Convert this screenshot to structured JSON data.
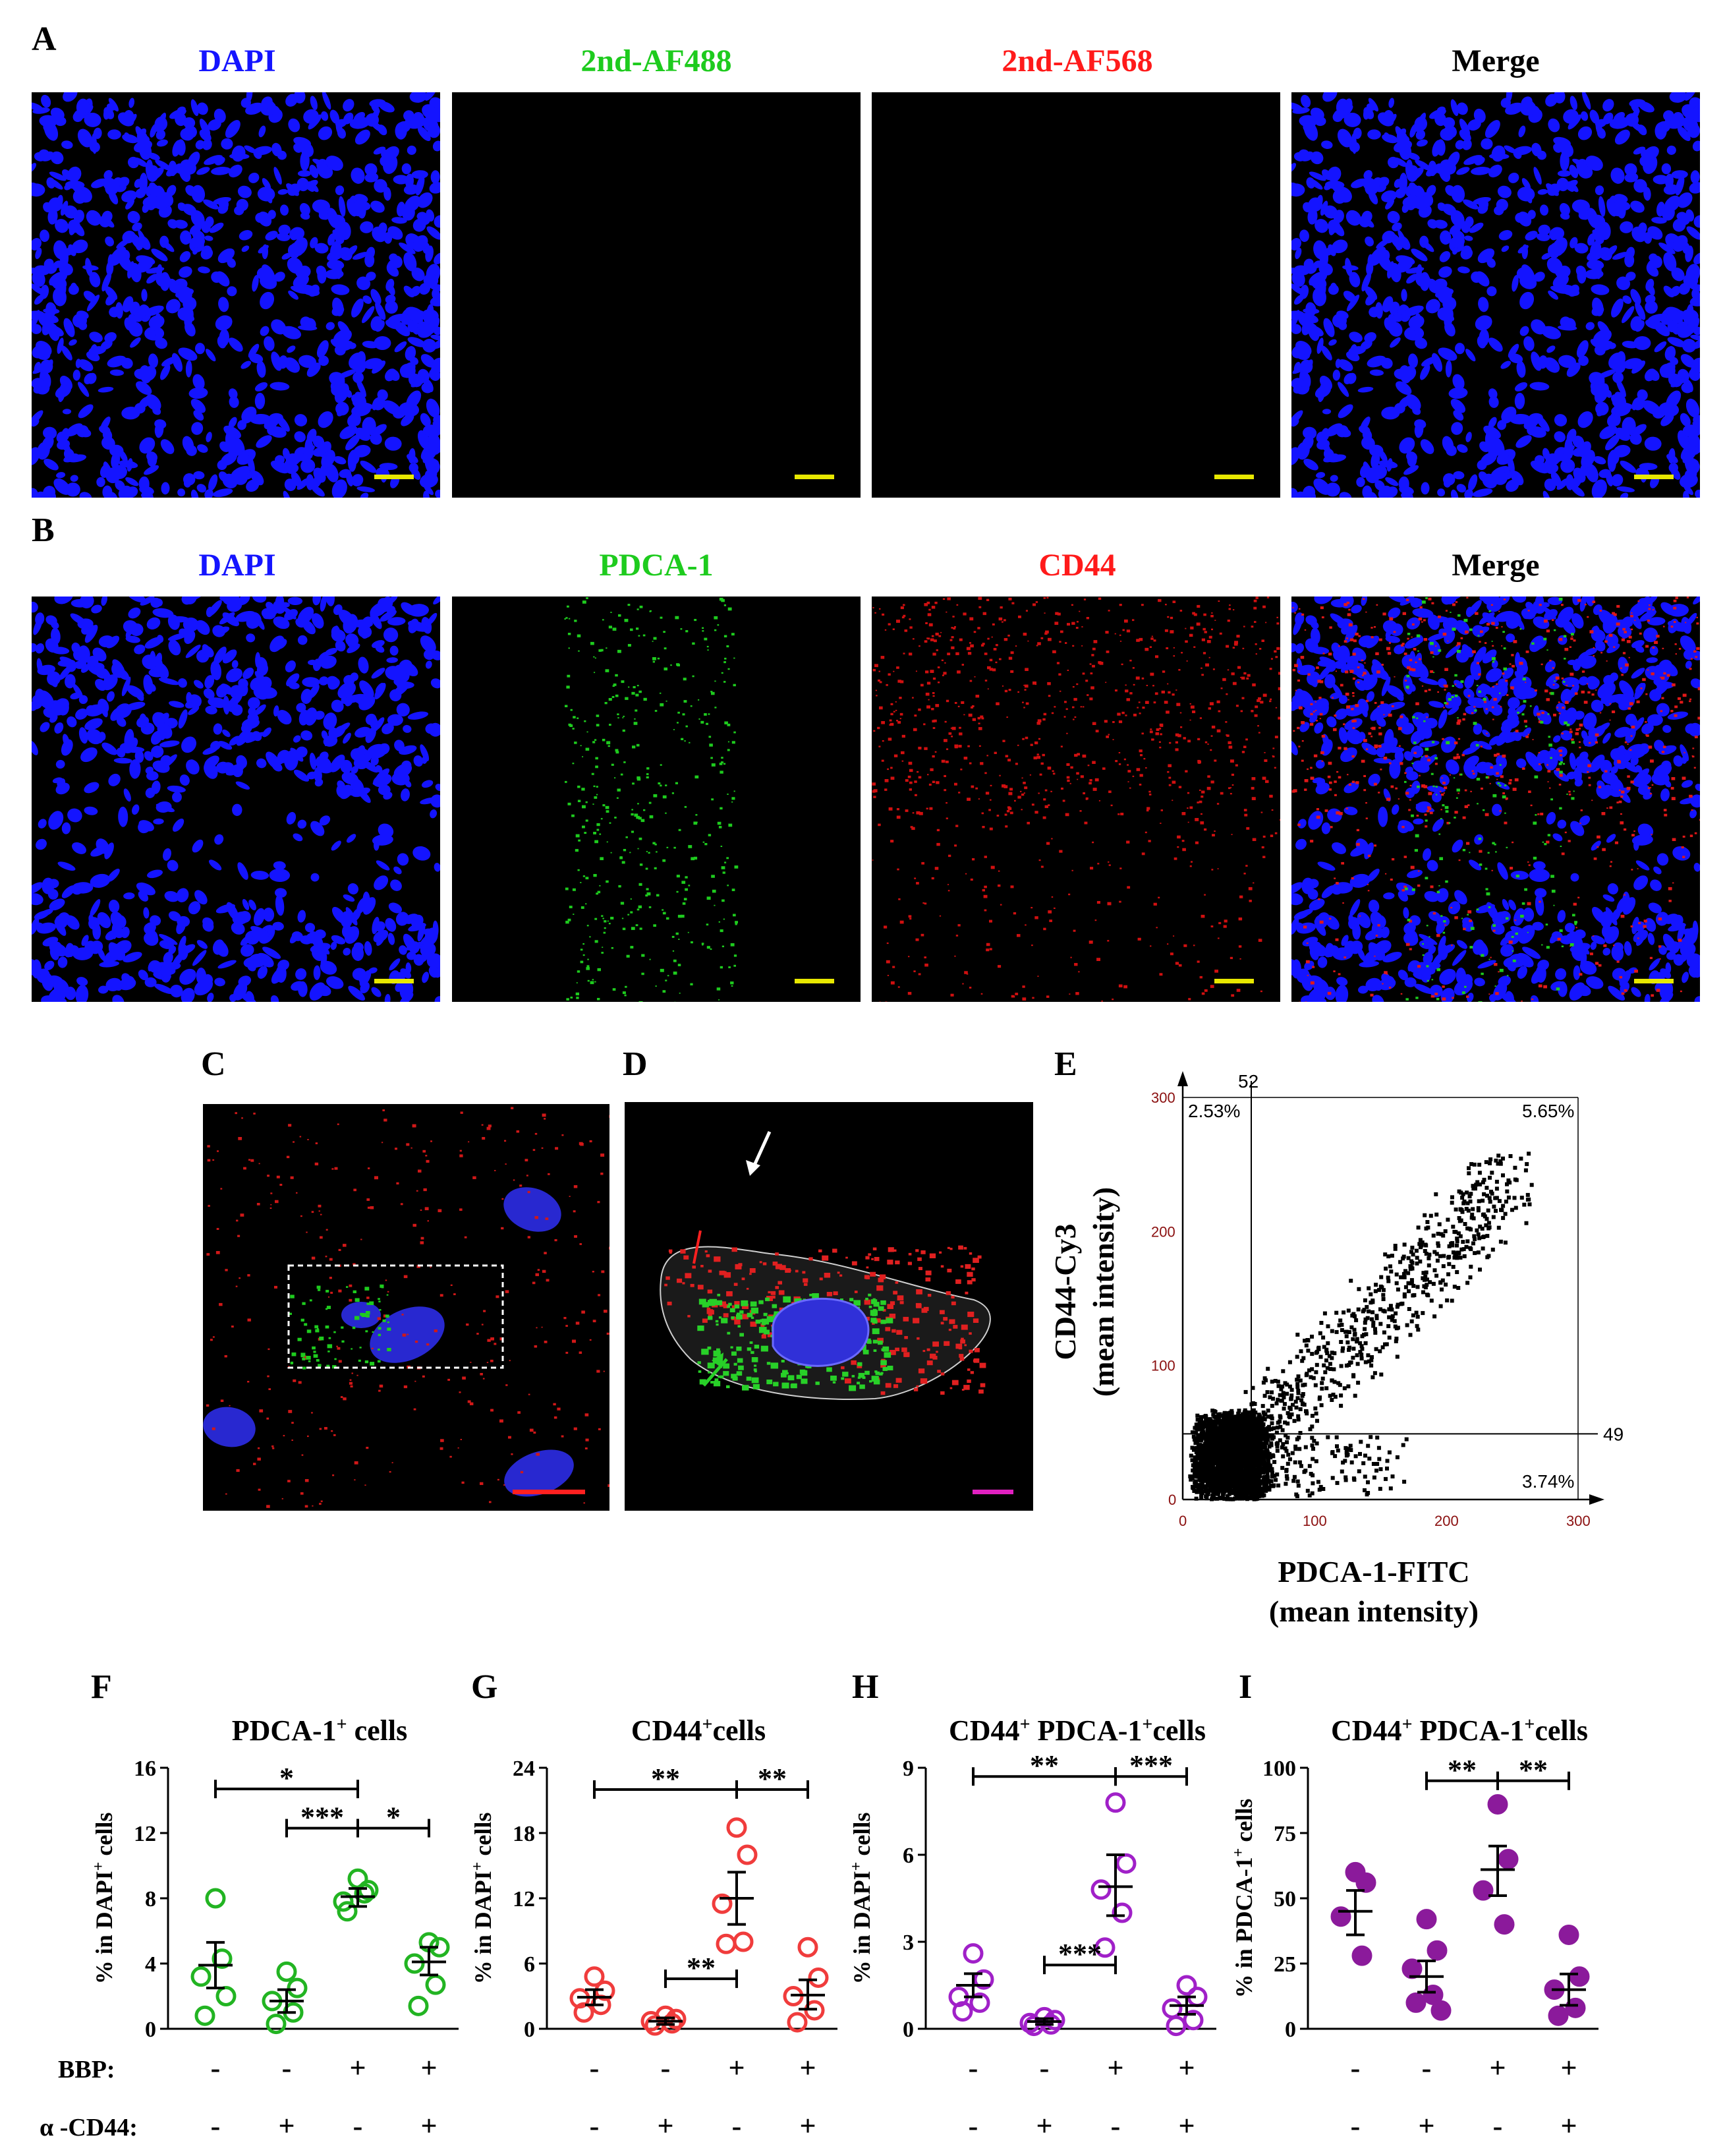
{
  "panel_letters": [
    "A",
    "B",
    "C",
    "D",
    "E",
    "F",
    "G",
    "H",
    "I"
  ],
  "colors": {
    "dapi": "#1414ff",
    "green": "#1ecb1e",
    "red": "#ff1a1a",
    "scalebar_yellow": "#e8e800",
    "scalebar_red": "#ff2020",
    "scalebar_magenta": "#e020c0",
    "plot_green": "#22b422",
    "plot_red": "#f03c3c",
    "plot_purple": "#a020c8",
    "plot_darkpurple": "#8b1a9b",
    "flow_axis": "#8b1010"
  },
  "rowA": {
    "labels": [
      "DAPI",
      "2nd-AF488",
      "2nd-AF568",
      "Merge"
    ],
    "label_colors": [
      "#1414ff",
      "#1ecb1e",
      "#ff1a1a",
      "#000000"
    ]
  },
  "rowB": {
    "labels": [
      "DAPI",
      "PDCA-1",
      "CD44",
      "Merge"
    ],
    "label_colors": [
      "#1414ff",
      "#1ecb1e",
      "#ff1a1a",
      "#000000"
    ]
  },
  "flow": {
    "gate_x": "52",
    "gate_y": "49",
    "q_ul": "2.53%",
    "q_ur": "5.65%",
    "q_lr": "3.74%",
    "ylabel1": "CD44-Cy3",
    "ylabel2": "(mean intensity)",
    "xlabel1": "PDCA-1-FITC",
    "xlabel2": "(mean intensity)",
    "xticks": [
      "0",
      "100",
      "200",
      "300"
    ],
    "yticks": [
      "0",
      "100",
      "200",
      "300"
    ]
  },
  "chart_data": [
    {
      "type": "scatter",
      "panel": "E",
      "xlabel": "PDCA-1-FITC (mean intensity)",
      "ylabel": "CD44-Cy3 (mean intensity)",
      "xlim": [
        0,
        300
      ],
      "ylim": [
        0,
        300
      ],
      "gates": {
        "x": 52,
        "y": 49
      },
      "quadrants": {
        "upper_left": "2.53%",
        "upper_right": "5.65%",
        "lower_right": "3.74%"
      }
    },
    {
      "type": "scatter",
      "panel": "F",
      "title": "PDCA-1+ cells",
      "ylabel": "% in DAPI+ cells",
      "ylim": [
        0,
        16
      ],
      "yticks": [
        0,
        4,
        8,
        12,
        16
      ],
      "groups": [
        {
          "points": [
            8.0,
            2.0,
            3.2,
            4.3,
            0.8
          ],
          "mean": 3.9,
          "sem_hi": 5.3,
          "sem_lo": 2.5
        },
        {
          "points": [
            3.5,
            2.5,
            1.7,
            1.0,
            0.3
          ],
          "mean": 1.7,
          "sem_hi": 2.4,
          "sem_lo": 1.0
        },
        {
          "points": [
            9.2,
            8.5,
            7.8,
            8.3,
            7.2
          ],
          "mean": 8.1,
          "sem_hi": 8.6,
          "sem_lo": 7.5
        },
        {
          "points": [
            5.3,
            5.0,
            4.0,
            2.7,
            1.4
          ],
          "mean": 4.1,
          "sem_hi": 5.0,
          "sem_lo": 3.3
        }
      ],
      "significance": [
        {
          "from": 0,
          "to": 2,
          "label": "*",
          "y": 14.7
        },
        {
          "from": 1,
          "to": 2,
          "label": "***",
          "y": 12.3
        },
        {
          "from": 2,
          "to": 3,
          "label": "*",
          "y": 12.3
        }
      ]
    },
    {
      "type": "scatter",
      "panel": "G",
      "title": "CD44+cells",
      "ylabel": "% in DAPI+ cells",
      "ylim": [
        0,
        24
      ],
      "yticks": [
        0,
        6,
        12,
        18,
        24
      ],
      "groups": [
        {
          "points": [
            4.8,
            3.5,
            2.8,
            2.2,
            1.5
          ],
          "mean": 2.9,
          "sem_hi": 3.6,
          "sem_lo": 2.2
        },
        {
          "points": [
            1.2,
            0.9,
            0.7,
            0.5,
            0.3
          ],
          "mean": 0.7,
          "sem_hi": 1.0,
          "sem_lo": 0.4
        },
        {
          "points": [
            18.5,
            16.0,
            11.5,
            8.0,
            7.8
          ],
          "mean": 12.0,
          "sem_hi": 14.4,
          "sem_lo": 9.6
        },
        {
          "points": [
            7.5,
            4.7,
            3.0,
            1.7,
            0.6
          ],
          "mean": 3.1,
          "sem_hi": 4.5,
          "sem_lo": 1.8
        }
      ],
      "significance": [
        {
          "from": 0,
          "to": 2,
          "label": "**",
          "y": 22.0
        },
        {
          "from": 2,
          "to": 3,
          "label": "**",
          "y": 22.0
        },
        {
          "from": 1,
          "to": 2,
          "label": "**",
          "y": 4.6
        }
      ]
    },
    {
      "type": "scatter",
      "panel": "H",
      "title": "CD44+ PDCA-1+cells",
      "ylabel": "% in DAPI+ cells",
      "ylim": [
        0,
        9
      ],
      "yticks": [
        0,
        3,
        6,
        9
      ],
      "groups": [
        {
          "points": [
            2.6,
            1.7,
            1.1,
            0.9,
            0.6
          ],
          "mean": 1.5,
          "sem_hi": 1.9,
          "sem_lo": 1.1
        },
        {
          "points": [
            0.4,
            0.3,
            0.2,
            0.15,
            0.1
          ],
          "mean": 0.25,
          "sem_hi": 0.35,
          "sem_lo": 0.15
        },
        {
          "points": [
            7.8,
            5.7,
            4.8,
            4.0,
            2.8
          ],
          "mean": 4.9,
          "sem_hi": 6.0,
          "sem_lo": 3.9
        },
        {
          "points": [
            1.5,
            1.1,
            0.7,
            0.3,
            0.1
          ],
          "mean": 0.8,
          "sem_hi": 1.1,
          "sem_lo": 0.5
        }
      ],
      "significance": [
        {
          "from": 0,
          "to": 2,
          "label": "**",
          "y": 8.7
        },
        {
          "from": 2,
          "to": 3,
          "label": "***",
          "y": 8.7
        },
        {
          "from": 1,
          "to": 2,
          "label": "***",
          "y": 2.2
        }
      ]
    },
    {
      "type": "scatter",
      "panel": "I",
      "title": "CD44+ PDCA-1+cells",
      "ylabel": "% in PDCA-1+ cells",
      "ylim": [
        0,
        100
      ],
      "yticks": [
        0,
        25,
        50,
        75,
        100
      ],
      "groups": [
        {
          "points": [
            60,
            56,
            43,
            28
          ],
          "mean": 45,
          "sem_hi": 53,
          "sem_lo": 36
        },
        {
          "points": [
            42,
            30,
            23,
            13,
            10,
            7
          ],
          "mean": 20,
          "sem_hi": 26,
          "sem_lo": 14
        },
        {
          "points": [
            86,
            65,
            53,
            40
          ],
          "mean": 61,
          "sem_hi": 70,
          "sem_lo": 51
        },
        {
          "points": [
            36,
            20,
            15,
            8,
            5
          ],
          "mean": 15,
          "sem_hi": 21,
          "sem_lo": 9
        }
      ],
      "significance": [
        {
          "from": 1,
          "to": 2,
          "label": "**",
          "y": 95
        },
        {
          "from": 2,
          "to": 3,
          "label": "**",
          "y": 95
        }
      ]
    }
  ],
  "plots": {
    "F": {
      "title_main": "PDCA-1",
      "title_sup": "+",
      "title_rest": " cells",
      "ylabel_main": "% in DAPI",
      "ylabel_sup": "+",
      "ylabel_rest": " cells"
    },
    "G": {
      "title_main": "CD44",
      "title_sup": "+",
      "title_rest": "cells",
      "ylabel_main": "% in DAPI",
      "ylabel_sup": "+",
      "ylabel_rest": " cells"
    },
    "H": {
      "title_main": "CD44",
      "title_sup": "+",
      "title_mid": " PDCA-1",
      "title_sup2": "+",
      "title_rest": "cells",
      "ylabel_main": "% in DAPI",
      "ylabel_sup": "+",
      "ylabel_rest": " cells"
    },
    "I": {
      "title_main": "CD44",
      "title_sup": "+",
      "title_mid": " PDCA-1",
      "title_sup2": "+",
      "title_rest": "cells",
      "ylabel_main": "% in PDCA-1",
      "ylabel_sup": "+",
      "ylabel_rest": " cells"
    }
  },
  "treatments": {
    "row1_label": "BBP:",
    "row2_label": "α -CD44:",
    "row1_values": [
      "-",
      "-",
      "+",
      "+"
    ],
    "row2_values": [
      "-",
      "+",
      "-",
      "+"
    ]
  }
}
